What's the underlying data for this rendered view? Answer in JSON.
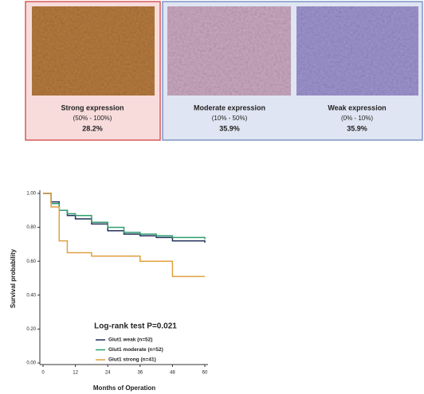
{
  "panels": [
    {
      "label": "Strong  expression",
      "range": "(50% - 100%)",
      "percent": "28.2%"
    },
    {
      "label": "Moderate  expression",
      "range": "(10% - 50%)",
      "percent": "35.9%"
    },
    {
      "label": "Weak  expression",
      "range": "(0% - 10%)",
      "percent": "35.9%"
    }
  ],
  "chart_data": {
    "type": "line",
    "step": true,
    "annotation": "Log-rank test P=0.021",
    "x_label": "Months of Operation",
    "y_label": "Survival probability",
    "x": [
      0,
      3,
      6,
      9,
      12,
      18,
      24,
      30,
      36,
      42,
      48,
      60
    ],
    "series": [
      {
        "name": "Glut1 weak (n=52)",
        "color": "#1f2f5a",
        "values": [
          1,
          0.95,
          0.9,
          0.87,
          0.85,
          0.82,
          0.78,
          0.76,
          0.75,
          0.74,
          0.72,
          0.71
        ]
      },
      {
        "name": "Glut1 moderate (n=52)",
        "color": "#2e9e6e",
        "values": [
          1,
          0.94,
          0.9,
          0.88,
          0.87,
          0.83,
          0.8,
          0.77,
          0.76,
          0.75,
          0.74,
          0.73
        ]
      },
      {
        "name": "Glut1 strong (n=41)",
        "color": "#e0a040",
        "values": [
          1,
          0.92,
          0.72,
          0.65,
          0.65,
          0.63,
          0.63,
          0.63,
          0.6,
          0.6,
          0.51,
          0.51
        ]
      }
    ],
    "xlim": [
      0,
      60
    ],
    "xticks": [
      0,
      12,
      24,
      36,
      48,
      60
    ],
    "ylim": [
      0,
      1
    ],
    "yticks": [
      {
        "value": 0,
        "label": "0.00"
      },
      {
        "value": 0.2,
        "label": "0.20"
      },
      {
        "value": 0.4,
        "label": "0.40"
      },
      {
        "value": 0.6,
        "label": "0.60"
      },
      {
        "value": 0.8,
        "label": "0.80"
      },
      {
        "value": 1,
        "label": "1.00"
      }
    ]
  }
}
